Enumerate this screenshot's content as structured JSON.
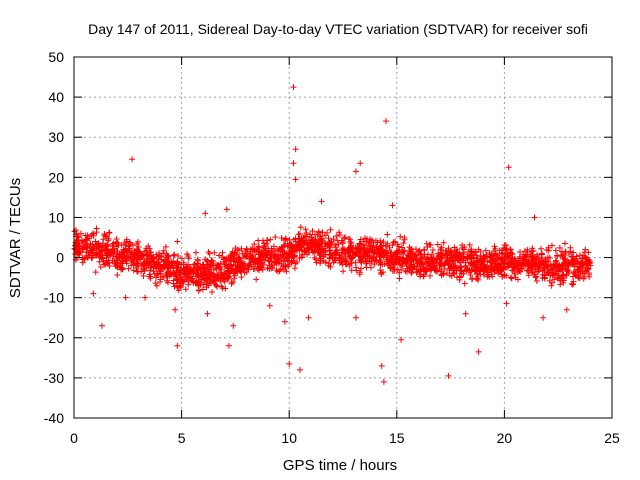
{
  "chart_data": {
    "type": "scatter",
    "title": "Day 147 of 2011, Sidereal Day-to-day VTEC variation (SDTVAR) for receiver sofi",
    "xlabel": "GPS time / hours",
    "ylabel": "SDTVAR / TECUs",
    "xlim": [
      0,
      25
    ],
    "ylim": [
      -40,
      50
    ],
    "xticks": [
      0,
      5,
      10,
      15,
      20,
      25
    ],
    "yticks": [
      -40,
      -30,
      -20,
      -10,
      0,
      10,
      20,
      30,
      40,
      50
    ],
    "grid": true,
    "marker": "+",
    "series_color": "#ff0000",
    "series": [
      {
        "name": "SDTVAR",
        "baseline": [
          [
            0,
            3
          ],
          [
            1,
            2
          ],
          [
            2,
            1
          ],
          [
            3,
            0
          ],
          [
            4,
            -2
          ],
          [
            5,
            -4
          ],
          [
            6,
            -4
          ],
          [
            7,
            -3
          ],
          [
            8,
            -1
          ],
          [
            9,
            1
          ],
          [
            10,
            1
          ],
          [
            10.5,
            3
          ],
          [
            11,
            3
          ],
          [
            12,
            2
          ],
          [
            13,
            1
          ],
          [
            14,
            1
          ],
          [
            15,
            0
          ],
          [
            16,
            -1
          ],
          [
            17,
            -1
          ],
          [
            18,
            -1
          ],
          [
            19,
            -2
          ],
          [
            20,
            -1
          ],
          [
            21,
            -1
          ],
          [
            22,
            -2
          ],
          [
            23,
            -2
          ],
          [
            24,
            -2
          ]
        ],
        "outliers": [
          [
            0.9,
            -9
          ],
          [
            1.3,
            -17
          ],
          [
            2.7,
            24.5
          ],
          [
            2.4,
            -10
          ],
          [
            3.3,
            -10
          ],
          [
            4.7,
            -13
          ],
          [
            4.8,
            -22
          ],
          [
            4.8,
            4
          ],
          [
            6.1,
            11
          ],
          [
            6.2,
            -14
          ],
          [
            7.1,
            12
          ],
          [
            7.2,
            -22
          ],
          [
            7.4,
            -17
          ],
          [
            9.1,
            -12
          ],
          [
            9.8,
            -16
          ],
          [
            10.0,
            -26.5
          ],
          [
            10.2,
            42.5
          ],
          [
            10.3,
            27
          ],
          [
            10.2,
            23.5
          ],
          [
            10.3,
            19.5
          ],
          [
            10.5,
            -28
          ],
          [
            10.9,
            -15
          ],
          [
            11.5,
            14
          ],
          [
            13.1,
            21.5
          ],
          [
            13.3,
            23.5
          ],
          [
            13.1,
            -15
          ],
          [
            14.3,
            -27
          ],
          [
            14.4,
            -31
          ],
          [
            14.5,
            34
          ],
          [
            14.8,
            13
          ],
          [
            15.2,
            -20.5
          ],
          [
            17.4,
            -29.5
          ],
          [
            18.2,
            -14
          ],
          [
            18.8,
            -23.5
          ],
          [
            20.2,
            22.5
          ],
          [
            20.1,
            -11.5
          ],
          [
            21.4,
            10
          ],
          [
            21.8,
            -15
          ],
          [
            22.9,
            -13
          ]
        ]
      }
    ]
  }
}
